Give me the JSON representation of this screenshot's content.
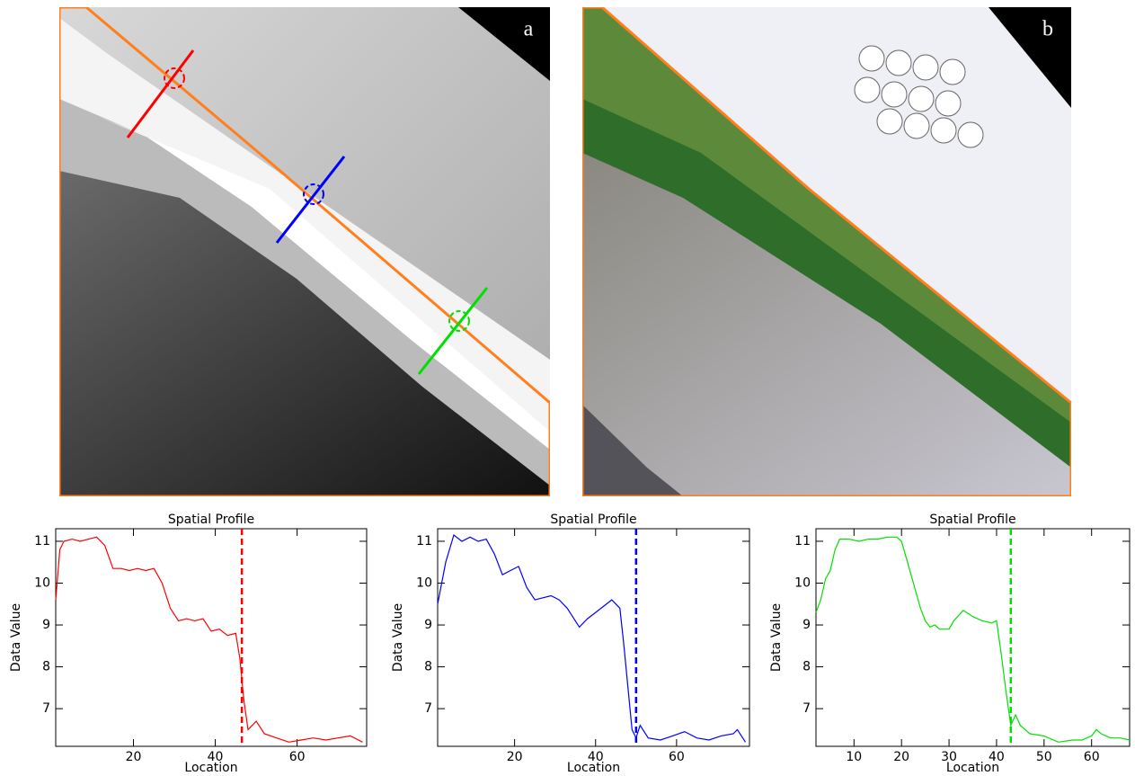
{
  "panels": [
    {
      "label": "a"
    },
    {
      "label": "b"
    }
  ],
  "chart_data": [
    {
      "type": "line",
      "title": "Spatial Profile",
      "x_label": "Location",
      "y_label": "Data Value",
      "color": "#ff0000",
      "x": [
        1,
        2,
        3,
        5,
        7,
        9,
        11,
        13,
        15,
        17,
        19,
        21,
        23,
        25,
        27,
        29,
        31,
        33,
        35,
        37,
        39,
        41,
        43,
        45,
        46,
        47,
        48,
        50,
        52,
        55,
        58,
        61,
        64,
        67,
        70,
        73,
        76
      ],
      "values": [
        9.6,
        10.8,
        11.0,
        11.05,
        11.0,
        11.05,
        11.1,
        10.9,
        10.35,
        10.35,
        10.3,
        10.35,
        10.3,
        10.35,
        10.0,
        9.4,
        9.1,
        9.15,
        9.1,
        9.15,
        8.85,
        8.9,
        8.75,
        8.8,
        8.2,
        7.2,
        6.5,
        6.7,
        6.4,
        6.3,
        6.2,
        6.25,
        6.3,
        6.25,
        6.3,
        6.35,
        6.2
      ],
      "marker_x": 46.5,
      "xlim": [
        1,
        77
      ],
      "ylim": [
        6.1,
        11.3
      ],
      "xticks": [
        20,
        40,
        60
      ],
      "yticks": [
        7,
        8,
        9,
        10,
        11
      ]
    },
    {
      "type": "line",
      "title": "Spatial Profile",
      "x_label": "Location",
      "y_label": "Data Value",
      "color": "#0000ff",
      "x": [
        1,
        3,
        5,
        7,
        9,
        11,
        13,
        15,
        17,
        19,
        21,
        23,
        25,
        27,
        29,
        31,
        33,
        35,
        36,
        38,
        40,
        42,
        44,
        46,
        47,
        48,
        49,
        50,
        51,
        53,
        56,
        59,
        62,
        65,
        68,
        71,
        74,
        75,
        77
      ],
      "values": [
        9.5,
        10.5,
        11.15,
        11.0,
        11.1,
        11.0,
        11.05,
        10.7,
        10.2,
        10.3,
        10.4,
        9.9,
        9.6,
        9.65,
        9.7,
        9.6,
        9.4,
        9.1,
        8.95,
        9.15,
        9.3,
        9.45,
        9.6,
        9.4,
        8.5,
        7.5,
        6.5,
        6.3,
        6.6,
        6.3,
        6.25,
        6.35,
        6.45,
        6.3,
        6.25,
        6.35,
        6.4,
        6.5,
        6.2
      ],
      "marker_x": 50,
      "xlim": [
        1,
        78
      ],
      "ylim": [
        6.1,
        11.3
      ],
      "xticks": [
        20,
        40,
        60
      ],
      "yticks": [
        7,
        8,
        9,
        10,
        11
      ]
    },
    {
      "type": "line",
      "title": "Spatial Profile",
      "x_label": "Location",
      "y_label": "Data Value",
      "color": "#00e000",
      "x": [
        2,
        3,
        4,
        5,
        6,
        7,
        9,
        11,
        13,
        15,
        17,
        19,
        20,
        21,
        22,
        23,
        24,
        25,
        26,
        27,
        28,
        30,
        31,
        33,
        35,
        37,
        39,
        40,
        41,
        42,
        43,
        44,
        45,
        47,
        50,
        53,
        56,
        58,
        60,
        61,
        62,
        64,
        66,
        68
      ],
      "values": [
        9.3,
        9.6,
        10.1,
        10.3,
        10.8,
        11.05,
        11.05,
        11.0,
        11.05,
        11.05,
        11.1,
        11.1,
        11.0,
        10.6,
        10.2,
        9.8,
        9.4,
        9.1,
        8.95,
        9.0,
        8.9,
        8.9,
        9.1,
        9.35,
        9.2,
        9.1,
        9.05,
        9.1,
        8.3,
        7.4,
        6.6,
        6.85,
        6.6,
        6.4,
        6.35,
        6.2,
        6.25,
        6.25,
        6.35,
        6.5,
        6.4,
        6.3,
        6.3,
        6.25
      ],
      "marker_x": 43,
      "xlim": [
        2,
        68
      ],
      "ylim": [
        6.1,
        11.3
      ],
      "xticks": [
        10,
        20,
        30,
        40,
        50,
        60
      ],
      "yticks": [
        7,
        8,
        9,
        10,
        11
      ]
    }
  ]
}
